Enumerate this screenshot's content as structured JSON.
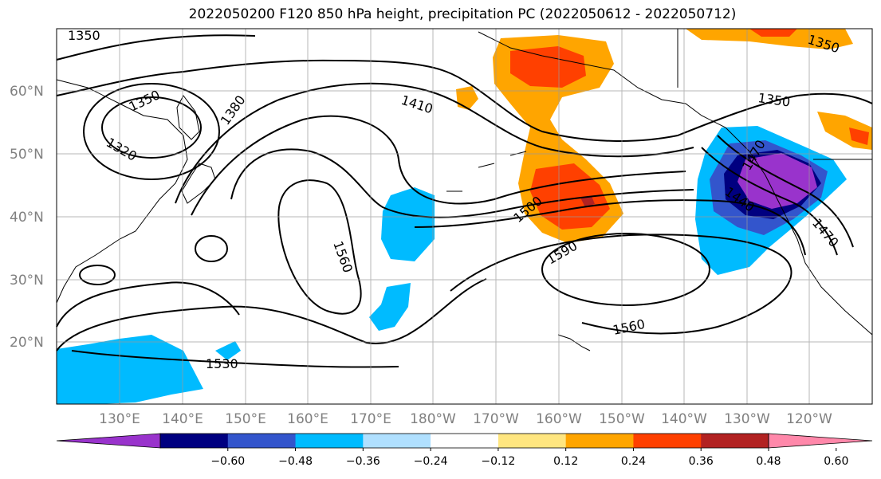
{
  "title": "2022050200 F120 850 hPa height, precipitation PC (2022050612 - 2022050712)",
  "latitude_labels": [
    "60°N",
    "50°N",
    "40°N",
    "30°N",
    "20°N"
  ],
  "longitude_labels": [
    "130°E",
    "140°E",
    "150°E",
    "160°E",
    "170°E",
    "180°W",
    "170°W",
    "160°W",
    "150°W",
    "140°W",
    "130°W",
    "120°W"
  ],
  "contour_labels": [
    "1350",
    "1350",
    "1320",
    "1380",
    "1410",
    "1350",
    "1500",
    "1590",
    "1560",
    "1560",
    "1530",
    "1440",
    "1470",
    "1350",
    "1470"
  ],
  "colorbar": {
    "colors": [
      "#9933cc",
      "#000080",
      "#3355cc",
      "#00bbff",
      "#b0e0ff",
      "#ffffff",
      "#ffe680",
      "#ffa500",
      "#ff4000",
      "#b22222",
      "#ff88aa"
    ],
    "tick_labels": [
      "−0.60",
      "−0.48",
      "−0.36",
      "−0.24",
      "−0.12",
      "0.12",
      "0.24",
      "0.36",
      "0.48",
      "0.60"
    ]
  }
}
